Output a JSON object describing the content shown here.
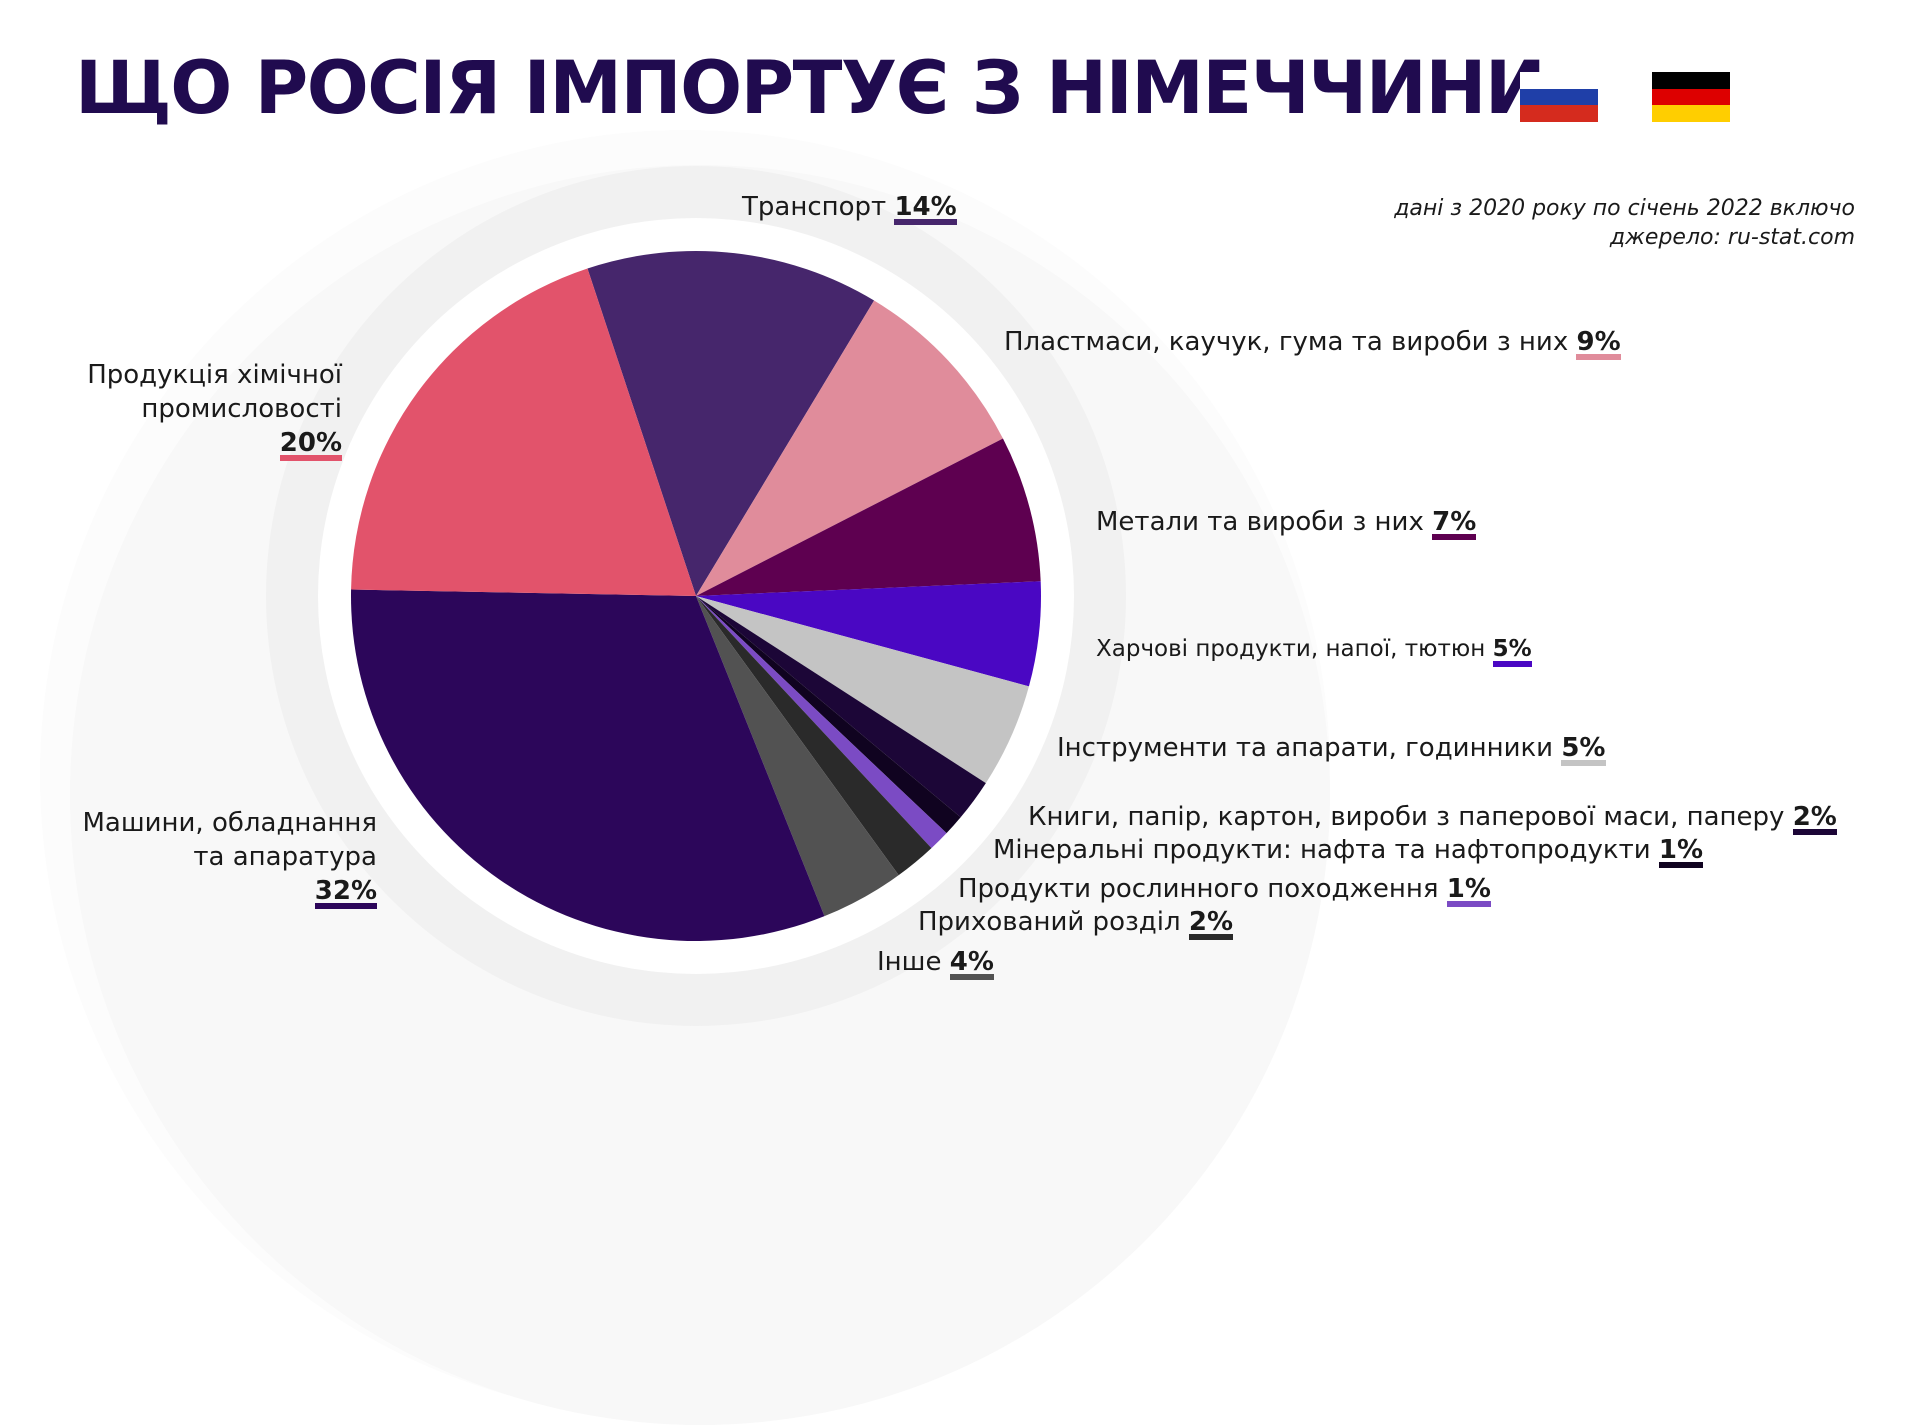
{
  "title": "ЩО РОСІЯ ІМПОРТУЄ З НІМЕЧЧИНИ",
  "source": {
    "line1": "дані з 2020 року по січень 2022 включо",
    "line2": "джерело: ru-stat.com"
  },
  "flags": {
    "russia": [
      "#ffffff",
      "#1f3fa8",
      "#d52b1e"
    ],
    "germany": [
      "#000000",
      "#dd0000",
      "#ffce00"
    ]
  },
  "chart_data": {
    "type": "pie",
    "title": "ЩО РОСІЯ ІМПОРТУЄ З НІМЕЧЧИНИ",
    "slices": [
      {
        "label": "Транспорт",
        "label_lines": [
          "Транспорт"
        ],
        "pct_text": "14%",
        "value": 14,
        "color": "#46266c"
      },
      {
        "label": "Пластмаси, каучук, гума та вироби з них",
        "label_lines": [
          "Пластмаси, каучук, гума та вироби з них"
        ],
        "pct_text": "9%",
        "value": 9,
        "color": "#e08c9b"
      },
      {
        "label": "Метали та вироби з них",
        "label_lines": [
          "Метали та вироби з них"
        ],
        "pct_text": "7%",
        "value": 7,
        "color": "#5e0050"
      },
      {
        "label": "Харчові продукти, напої, тютюн",
        "label_lines": [
          "Харчові продукти, напої, тютюн"
        ],
        "pct_text": "5%",
        "value": 5,
        "color": "#4a07c3"
      },
      {
        "label": "Інструменти та апарати, годинники",
        "label_lines": [
          "Інструменти та апарати, годинники"
        ],
        "pct_text": "5%",
        "value": 5,
        "color": "#c4c4c4"
      },
      {
        "label": "Книги, папір, картон, вироби з паперової маси, паперу",
        "label_lines": [
          "Книги, папір, картон, вироби з паперової маси, паперу"
        ],
        "pct_text": "2%",
        "value": 2,
        "color": "#1c0637"
      },
      {
        "label": "Мінеральні продукти: нафта та нафтопродукти",
        "label_lines": [
          "Мінеральні продукти: нафта та нафтопродукти"
        ],
        "pct_text": "1%",
        "value": 1,
        "color": "#100320"
      },
      {
        "label": "Продукти рослинного походження",
        "label_lines": [
          "Продукти рослинного походження"
        ],
        "pct_text": "1%",
        "value": 1,
        "color": "#7b4bc4"
      },
      {
        "label": "Прихований розділ",
        "label_lines": [
          "Прихований розділ"
        ],
        "pct_text": "2%",
        "value": 2,
        "color": "#2a2a2a"
      },
      {
        "label": "Інше",
        "label_lines": [
          "Інше"
        ],
        "pct_text": "4%",
        "value": 4,
        "color": "#525252"
      },
      {
        "label": "Машини, обладнання та апаратура",
        "label_lines": [
          "Машини, обладнання",
          "та апаратура"
        ],
        "pct_text": "32%",
        "value": 32,
        "color": "#2c065a"
      },
      {
        "label": "Продукція хімічної промисловості",
        "label_lines": [
          "Продукція хімічної",
          "промисловості"
        ],
        "pct_text": "20%",
        "value": 20,
        "color": "#e2536b"
      }
    ]
  }
}
